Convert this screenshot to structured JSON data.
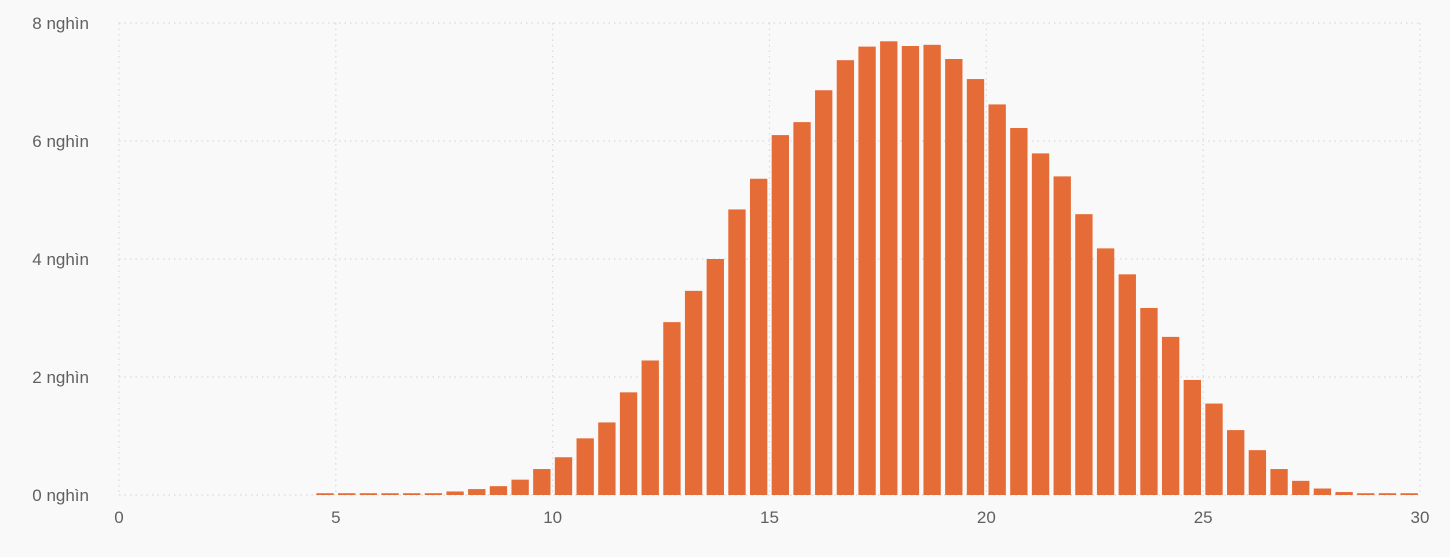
{
  "chart_data": {
    "type": "bar",
    "title": "",
    "xlabel": "",
    "ylabel": "",
    "x": [
      4.75,
      5.25,
      5.75,
      6.25,
      6.75,
      7.25,
      7.75,
      8.25,
      8.75,
      9.25,
      9.75,
      10.25,
      10.75,
      11.25,
      11.75,
      12.25,
      12.75,
      13.25,
      13.75,
      14.25,
      14.75,
      15.25,
      15.75,
      16.25,
      16.75,
      17.25,
      17.75,
      18.25,
      18.75,
      19.25,
      19.75,
      20.25,
      20.75,
      21.25,
      21.75,
      22.25,
      22.75,
      23.25,
      23.75,
      24.25,
      24.75,
      25.25,
      25.75,
      26.25,
      26.75,
      27.25,
      27.75,
      28.25,
      28.75,
      29.25,
      29.75
    ],
    "values": [
      30,
      30,
      30,
      30,
      30,
      30,
      60,
      100,
      150,
      260,
      440,
      640,
      960,
      1230,
      1740,
      2280,
      2930,
      3460,
      4000,
      4840,
      5360,
      6100,
      6320,
      6860,
      7370,
      7600,
      7690,
      7610,
      7630,
      7390,
      7050,
      6620,
      6220,
      5790,
      5400,
      4760,
      4180,
      3740,
      3170,
      2680,
      1950,
      1550,
      1100,
      760,
      440,
      240,
      110,
      50,
      30,
      30,
      30
    ],
    "xlim": [
      0,
      30
    ],
    "ylim": [
      0,
      8000
    ],
    "x_ticks": [
      0,
      5,
      10,
      15,
      20,
      25,
      30
    ],
    "x_tick_labels": [
      "0",
      "5",
      "10",
      "15",
      "20",
      "25",
      "30"
    ],
    "y_ticks": [
      0,
      2000,
      4000,
      6000,
      8000
    ],
    "y_tick_labels": [
      "0 nghìn",
      "2 nghìn",
      "4 nghìn",
      "6 nghìn",
      "8 nghìn"
    ],
    "bar_width": 0.4,
    "grid": true,
    "colors": {
      "bar": "#e66c37",
      "grid": "#d9d9d9",
      "background": "#f9f9f9",
      "tick_text": "#606060"
    }
  }
}
